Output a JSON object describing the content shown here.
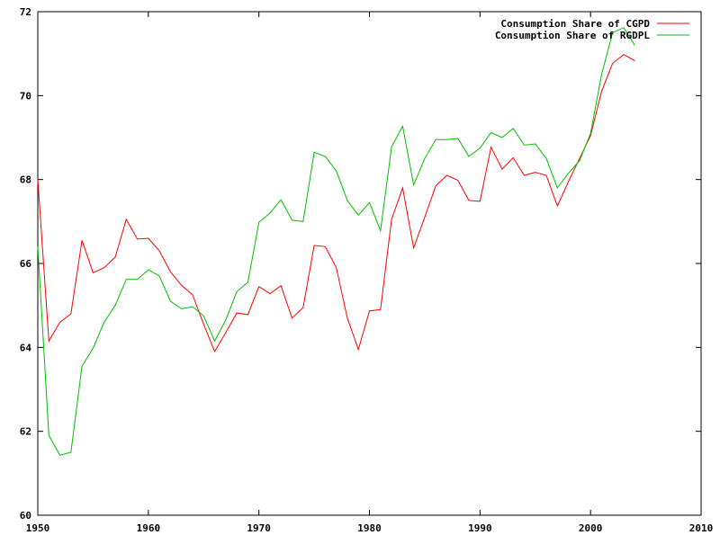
{
  "chart_data": {
    "type": "line",
    "title": "",
    "xlabel": "",
    "ylabel": "",
    "xlim": [
      1950,
      2010
    ],
    "ylim": [
      60,
      72
    ],
    "grid": false,
    "legend_position": "top-right",
    "x_ticks": [
      1950,
      1960,
      1970,
      1980,
      1990,
      2000,
      2010
    ],
    "y_ticks": [
      60,
      62,
      64,
      66,
      68,
      70,
      72
    ],
    "x": [
      1950,
      1951,
      1952,
      1953,
      1954,
      1955,
      1956,
      1957,
      1958,
      1959,
      1960,
      1961,
      1962,
      1963,
      1964,
      1965,
      1966,
      1967,
      1968,
      1969,
      1970,
      1971,
      1972,
      1973,
      1974,
      1975,
      1976,
      1977,
      1978,
      1979,
      1980,
      1981,
      1982,
      1983,
      1984,
      1985,
      1986,
      1987,
      1988,
      1989,
      1990,
      1991,
      1992,
      1993,
      1994,
      1995,
      1996,
      1997,
      1998,
      1999,
      2000,
      2001,
      2002,
      2003,
      2004
    ],
    "series": [
      {
        "name": "Consumption Share of CGPD",
        "color": "#ff0000",
        "values": [
          68.0,
          64.15,
          64.6,
          64.8,
          66.55,
          65.78,
          65.9,
          66.15,
          67.05,
          66.58,
          66.6,
          66.3,
          65.8,
          65.48,
          65.25,
          64.55,
          63.9,
          64.35,
          64.82,
          64.78,
          65.45,
          65.28,
          65.47,
          64.7,
          64.95,
          66.43,
          66.4,
          65.9,
          64.7,
          63.95,
          64.87,
          64.9,
          67.05,
          67.8,
          66.37,
          67.1,
          67.85,
          68.1,
          67.98,
          67.5,
          67.48,
          68.77,
          68.25,
          68.52,
          68.1,
          68.17,
          68.1,
          67.37,
          67.95,
          68.5,
          69.05,
          70.1,
          70.77,
          70.98,
          70.83
        ]
      },
      {
        "name": "Consumption Share of RGDPL",
        "color": "#00c000",
        "values": [
          66.4,
          61.9,
          61.43,
          61.5,
          63.55,
          63.98,
          64.6,
          65.0,
          65.62,
          65.62,
          65.85,
          65.7,
          65.1,
          64.92,
          64.97,
          64.75,
          64.15,
          64.65,
          65.33,
          65.55,
          66.98,
          67.2,
          67.52,
          67.03,
          67.0,
          68.65,
          68.55,
          68.2,
          67.5,
          67.15,
          67.45,
          66.78,
          68.78,
          69.27,
          67.87,
          68.5,
          68.95,
          68.95,
          68.98,
          68.55,
          68.75,
          69.12,
          69.0,
          69.22,
          68.82,
          68.85,
          68.5,
          67.8,
          68.15,
          68.45,
          69.1,
          70.5,
          71.5,
          71.62,
          71.2
        ]
      }
    ]
  }
}
